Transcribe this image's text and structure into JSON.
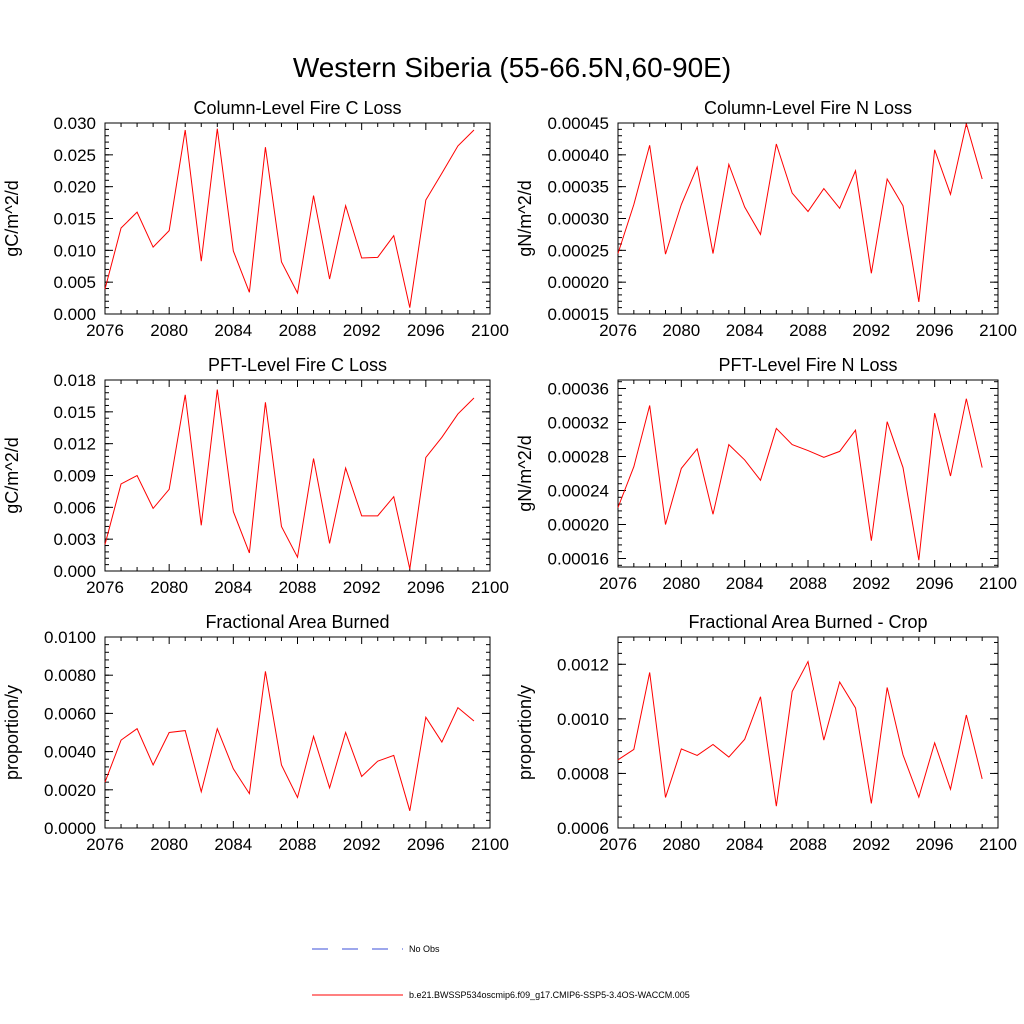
{
  "figure": {
    "title": "Western Siberia (55-66.5N,60-90E)"
  },
  "legend": {
    "items": [
      {
        "label": "No Obs",
        "color": "#3b4fd8",
        "dash": "dashed"
      },
      {
        "label": "b.e21.BWSSP534oscmip6.f09_g17.CMIP6-SSP5-3.4OS-WACCM.005",
        "color": "#ff0000",
        "dash": "solid"
      }
    ]
  },
  "chart_data": [
    {
      "type": "line",
      "title": "Column-Level Fire C Loss",
      "ylabel": "gC/m^2/d",
      "xlim": [
        2076,
        2100
      ],
      "xticks": [
        "2076",
        "2080",
        "2084",
        "2088",
        "2092",
        "2096",
        "2100"
      ],
      "ylim": [
        0,
        0.03
      ],
      "yticks": [
        "0.000",
        "0.005",
        "0.010",
        "0.015",
        "0.020",
        "0.025",
        "0.030"
      ],
      "x": [
        2076,
        2077,
        2078,
        2079,
        2080,
        2081,
        2082,
        2083,
        2084,
        2085,
        2086,
        2087,
        2088,
        2089,
        2090,
        2091,
        2092,
        2093,
        2094,
        2095,
        2096,
        2097,
        2098,
        2099
      ],
      "series": [
        {
          "color": "#ff0000",
          "values": [
            0.0039,
            0.0135,
            0.016,
            0.0105,
            0.0131,
            0.0289,
            0.0083,
            0.0291,
            0.0099,
            0.0034,
            0.0262,
            0.0082,
            0.0033,
            0.0186,
            0.0055,
            0.017,
            0.0088,
            0.0089,
            0.0123,
            0.001,
            0.0179,
            0.0221,
            0.0264,
            0.0289
          ]
        }
      ]
    },
    {
      "type": "line",
      "title": "Column-Level Fire N Loss",
      "ylabel": "gN/m^2/d",
      "xlim": [
        2076,
        2100
      ],
      "xticks": [
        "2076",
        "2080",
        "2084",
        "2088",
        "2092",
        "2096",
        "2100"
      ],
      "ylim": [
        0.00015,
        0.00045
      ],
      "yticks": [
        "0.00015",
        "0.00020",
        "0.00025",
        "0.00030",
        "0.00035",
        "0.00040",
        "0.00045"
      ],
      "x": [
        2076,
        2077,
        2078,
        2079,
        2080,
        2081,
        2082,
        2083,
        2084,
        2085,
        2086,
        2087,
        2088,
        2089,
        2090,
        2091,
        2092,
        2093,
        2094,
        2095,
        2096,
        2097,
        2098,
        2099
      ],
      "series": [
        {
          "color": "#ff0000",
          "values": [
            0.000245,
            0.000322,
            0.000415,
            0.000244,
            0.000322,
            0.000381,
            0.000245,
            0.000385,
            0.000318,
            0.000275,
            0.000417,
            0.00034,
            0.000311,
            0.000347,
            0.000316,
            0.000375,
            0.000214,
            0.000362,
            0.00032,
            0.000169,
            0.000408,
            0.000338,
            0.000449,
            0.000362
          ]
        }
      ]
    },
    {
      "type": "line",
      "title": "PFT-Level Fire C Loss",
      "ylabel": "gC/m^2/d",
      "xlim": [
        2076,
        2100
      ],
      "xticks": [
        "2076",
        "2080",
        "2084",
        "2088",
        "2092",
        "2096",
        "2100"
      ],
      "ylim": [
        0,
        0.018
      ],
      "yticks": [
        "0.000",
        "0.003",
        "0.006",
        "0.009",
        "0.012",
        "0.015",
        "0.018"
      ],
      "x": [
        2076,
        2077,
        2078,
        2079,
        2080,
        2081,
        2082,
        2083,
        2084,
        2085,
        2086,
        2087,
        2088,
        2089,
        2090,
        2091,
        2092,
        2093,
        2094,
        2095,
        2096,
        2097,
        2098,
        2099
      ],
      "series": [
        {
          "color": "#ff0000",
          "values": [
            0.0025,
            0.0082,
            0.009,
            0.0059,
            0.0077,
            0.0166,
            0.0043,
            0.0171,
            0.0056,
            0.0017,
            0.0159,
            0.0042,
            0.0013,
            0.0106,
            0.0026,
            0.0097,
            0.0052,
            0.0052,
            0.007,
            0.0002,
            0.0107,
            0.0126,
            0.0148,
            0.0163
          ]
        }
      ]
    },
    {
      "type": "line",
      "title": "PFT-Level Fire N Loss",
      "ylabel": "gN/m^2/d",
      "xlim": [
        2076,
        2100
      ],
      "xticks": [
        "2076",
        "2080",
        "2084",
        "2088",
        "2092",
        "2096",
        "2100"
      ],
      "ylim": [
        0.00015,
        0.00037
      ],
      "yticks": [
        "0.00016",
        "0.00020",
        "0.00024",
        "0.00028",
        "0.00032",
        "0.00036"
      ],
      "x": [
        2076,
        2077,
        2078,
        2079,
        2080,
        2081,
        2082,
        2083,
        2084,
        2085,
        2086,
        2087,
        2088,
        2089,
        2090,
        2091,
        2092,
        2093,
        2094,
        2095,
        2096,
        2097,
        2098,
        2099
      ],
      "series": [
        {
          "color": "#ff0000",
          "values": [
            0.00022,
            0.000268,
            0.00034,
            0.0002,
            0.000266,
            0.000289,
            0.000212,
            0.000294,
            0.000276,
            0.000252,
            0.000313,
            0.000294,
            0.000287,
            0.000279,
            0.000286,
            0.000311,
            0.000181,
            0.000321,
            0.000267,
            0.000158,
            0.000331,
            0.000257,
            0.000348,
            0.000267
          ]
        }
      ]
    },
    {
      "type": "line",
      "title": "Fractional Area Burned",
      "ylabel": "proportion/y",
      "xlim": [
        2076,
        2100
      ],
      "xticks": [
        "2076",
        "2080",
        "2084",
        "2088",
        "2092",
        "2096",
        "2100"
      ],
      "ylim": [
        0,
        0.01
      ],
      "yticks": [
        "0.0000",
        "0.0020",
        "0.0040",
        "0.0060",
        "0.0080",
        "0.0100"
      ],
      "x": [
        2076,
        2077,
        2078,
        2079,
        2080,
        2081,
        2082,
        2083,
        2084,
        2085,
        2086,
        2087,
        2088,
        2089,
        2090,
        2091,
        2092,
        2093,
        2094,
        2095,
        2096,
        2097,
        2098,
        2099
      ],
      "series": [
        {
          "color": "#ff0000",
          "values": [
            0.0024,
            0.0046,
            0.0052,
            0.0033,
            0.005,
            0.0051,
            0.0019,
            0.0052,
            0.0031,
            0.0018,
            0.0082,
            0.0033,
            0.0016,
            0.0048,
            0.0021,
            0.005,
            0.0027,
            0.0035,
            0.0038,
            0.0009,
            0.0058,
            0.0045,
            0.0063,
            0.0056
          ]
        }
      ]
    },
    {
      "type": "line",
      "title": "Fractional Area Burned - Crop",
      "ylabel": "proportion/y",
      "xlim": [
        2076,
        2100
      ],
      "xticks": [
        "2076",
        "2080",
        "2084",
        "2088",
        "2092",
        "2096",
        "2100"
      ],
      "ylim": [
        0.0006,
        0.0013
      ],
      "yticks": [
        "0.0006",
        "0.0008",
        "0.0010",
        "0.0012"
      ],
      "x": [
        2076,
        2077,
        2078,
        2079,
        2080,
        2081,
        2082,
        2083,
        2084,
        2085,
        2086,
        2087,
        2088,
        2089,
        2090,
        2091,
        2092,
        2093,
        2094,
        2095,
        2096,
        2097,
        2098,
        2099
      ],
      "series": [
        {
          "color": "#ff0000",
          "values": [
            0.00085,
            0.000888,
            0.00117,
            0.000712,
            0.00089,
            0.000866,
            0.000906,
            0.00086,
            0.000925,
            0.001081,
            0.00068,
            0.0011,
            0.00121,
            0.000922,
            0.001135,
            0.00104,
            0.00069,
            0.001115,
            0.000868,
            0.000713,
            0.000912,
            0.000742,
            0.001014,
            0.00078
          ]
        }
      ]
    }
  ]
}
